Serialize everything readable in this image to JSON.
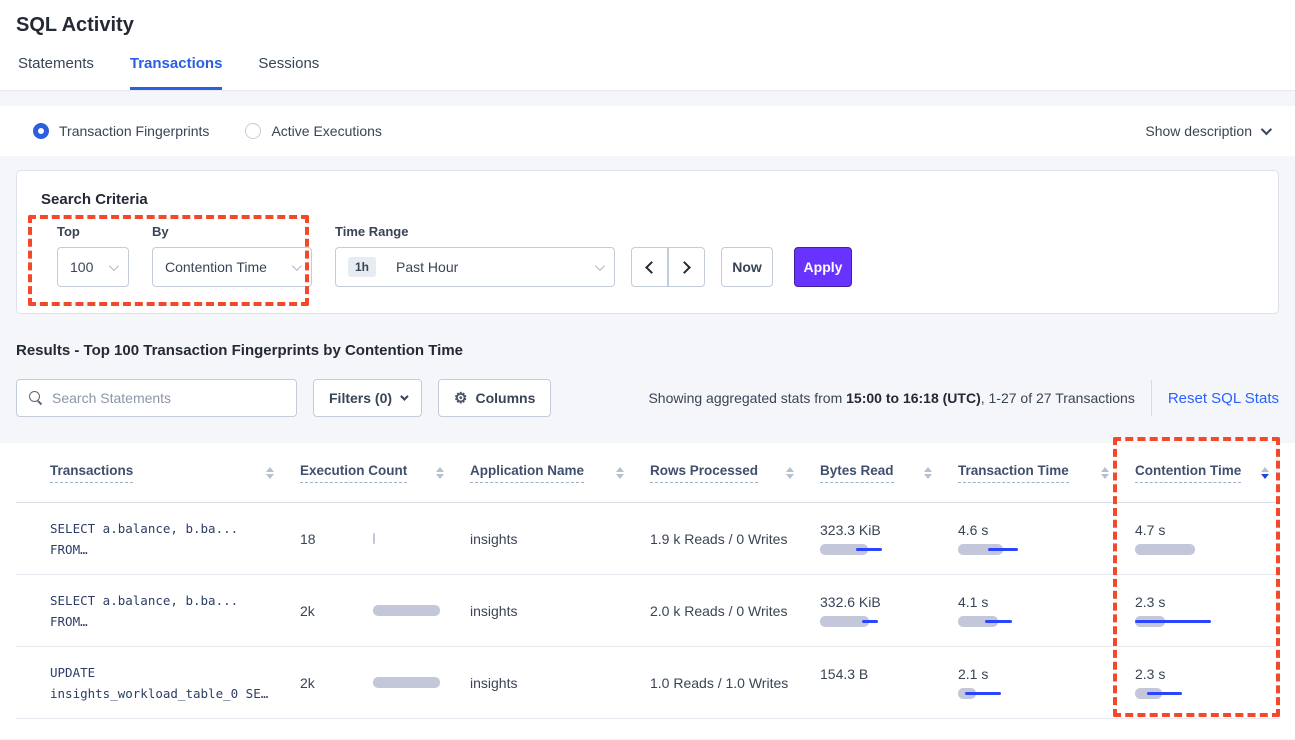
{
  "header": {
    "title": "SQL Activity",
    "tabs": [
      "Statements",
      "Transactions",
      "Sessions"
    ],
    "active_tab": "Transactions"
  },
  "view_toggle": {
    "fingerprints_label": "Transaction Fingerprints",
    "executions_label": "Active Executions",
    "fingerprints_selected": true,
    "show_description_label": "Show description"
  },
  "search_criteria": {
    "heading": "Search Criteria",
    "top_label": "Top",
    "top_value": "100",
    "by_label": "By",
    "by_value": "Contention Time",
    "time_range_label": "Time Range",
    "time_badge": "1h",
    "time_value": "Past Hour",
    "now_label": "Now",
    "apply_label": "Apply"
  },
  "results_bar": {
    "heading": "Results - Top 100 Transaction Fingerprints by Contention Time",
    "search_placeholder": "Search Statements",
    "filters_label": "Filters (0)",
    "columns_label": "Columns",
    "stats_prefix": "Showing aggregated stats from ",
    "stats_bold": "15:00 to 16:18 (UTC)",
    "stats_suffix": ", 1-27 of 27 Transactions",
    "reset_label": "Reset SQL Stats"
  },
  "table": {
    "headers": [
      "Transactions",
      "Execution Count",
      "Application Name",
      "Rows Processed",
      "Bytes Read",
      "Transaction Time",
      "Contention Time"
    ],
    "sorted_column": "Contention Time",
    "sort_direction": "desc",
    "rows": [
      {
        "query_line1": "SELECT a.balance, b.ba...",
        "query_line2": "FROM…",
        "exec_count": "18",
        "exec_bar": {
          "g": 2
        },
        "app": "insights",
        "rows_processed": "1.9 k Reads / 0 Writes",
        "bytes_read": "323.3 KiB",
        "bytes_bar": {
          "g": 48,
          "bx": 36,
          "bw": 26
        },
        "txn_time": "4.6 s",
        "txn_bar": {
          "g": 45,
          "bx": 30,
          "bw": 30
        },
        "contention": "4.7 s",
        "cont_bar": {
          "g": 60,
          "bx": 0,
          "bw": 0
        }
      },
      {
        "query_line1": "SELECT a.balance, b.ba...",
        "query_line2": "FROM…",
        "exec_count": "2k",
        "exec_bar": {
          "g": 67
        },
        "app": "insights",
        "rows_processed": "2.0 k Reads / 0 Writes",
        "bytes_read": "332.6 KiB",
        "bytes_bar": {
          "g": 49,
          "bx": 42,
          "bw": 16
        },
        "txn_time": "4.1 s",
        "txn_bar": {
          "g": 40,
          "bx": 27,
          "bw": 27
        },
        "contention": "2.3 s",
        "cont_bar": {
          "g": 30,
          "bx": 0,
          "bw": 76
        }
      },
      {
        "query_line1": "UPDATE",
        "query_line2": "insights_workload_table_0 SE…",
        "exec_count": "2k",
        "exec_bar": {
          "g": 67
        },
        "app": "insights",
        "rows_processed": "1.0 Reads / 1.0 Writes",
        "bytes_read": "154.3 B",
        "bytes_bar": null,
        "txn_time": "2.1 s",
        "txn_bar": {
          "g": 18,
          "bx": 7,
          "bw": 36
        },
        "contention": "2.3 s",
        "cont_bar": {
          "g": 27,
          "bx": 12,
          "bw": 35
        }
      }
    ]
  },
  "colors": {
    "accent_blue": "#2b5fe0",
    "link_blue": "#2962ff",
    "apply_purple": "#6933ff",
    "bar_grey": "#c3c7d9",
    "bar_blue": "#2945ff",
    "annotation_red": "#f3482a"
  }
}
